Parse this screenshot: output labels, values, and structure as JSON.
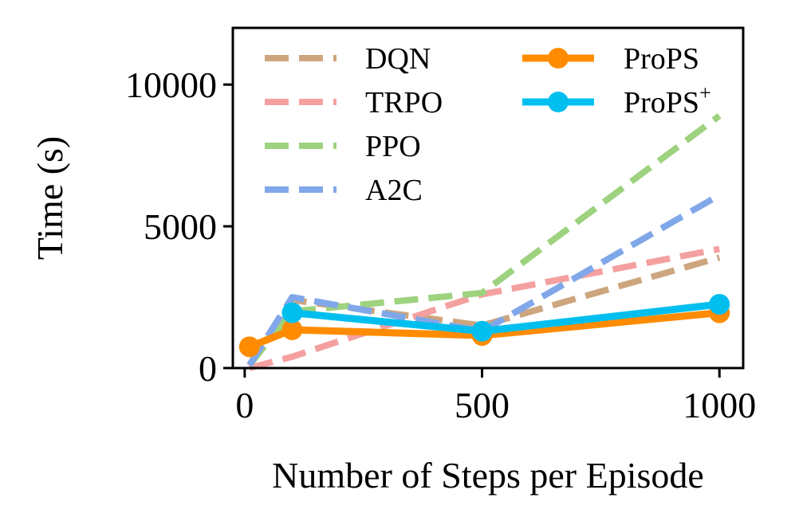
{
  "chart_data": {
    "type": "line",
    "title": "",
    "xlabel": "Number of Steps per Episode",
    "ylabel": "Time (s)",
    "xlim": [
      -25,
      1050
    ],
    "ylim": [
      0,
      12000
    ],
    "xticks": [
      0,
      500,
      1000
    ],
    "yticks": [
      0,
      5000,
      10000
    ],
    "xtick_labels": [
      "0",
      "500",
      "1000"
    ],
    "ytick_labels": [
      "0",
      "5000",
      "10000"
    ],
    "grid": false,
    "legend_position": "top",
    "series": [
      {
        "name": "DQN",
        "color": "#CDA67F",
        "style": "dashed",
        "markers": false,
        "x": [
          10,
          100,
          500,
          1000
        ],
        "y": [
          100,
          2400,
          1500,
          3900
        ]
      },
      {
        "name": "TRPO",
        "color": "#F4A0A0",
        "style": "dashed",
        "markers": false,
        "x": [
          10,
          100,
          500,
          1000
        ],
        "y": [
          0,
          400,
          2600,
          4200
        ]
      },
      {
        "name": "PPO",
        "color": "#9DD27E",
        "style": "dashed",
        "markers": false,
        "x": [
          10,
          100,
          500,
          1000
        ],
        "y": [
          100,
          2000,
          2650,
          8900
        ]
      },
      {
        "name": "A2C",
        "color": "#80A7E9",
        "style": "dashed",
        "markers": false,
        "x": [
          10,
          100,
          500,
          1000
        ],
        "y": [
          100,
          2500,
          1300,
          6100
        ]
      },
      {
        "name": "ProPS",
        "color": "#FF8C00",
        "style": "solid",
        "markers": true,
        "x": [
          10,
          100,
          500,
          1000
        ],
        "y": [
          750,
          1350,
          1150,
          1950
        ]
      },
      {
        "name": "ProPS",
        "name_superscript": "+",
        "color": "#00BFEF",
        "style": "solid",
        "markers": true,
        "x": [
          100,
          500,
          1000
        ],
        "y": [
          1950,
          1300,
          2250
        ]
      }
    ]
  }
}
